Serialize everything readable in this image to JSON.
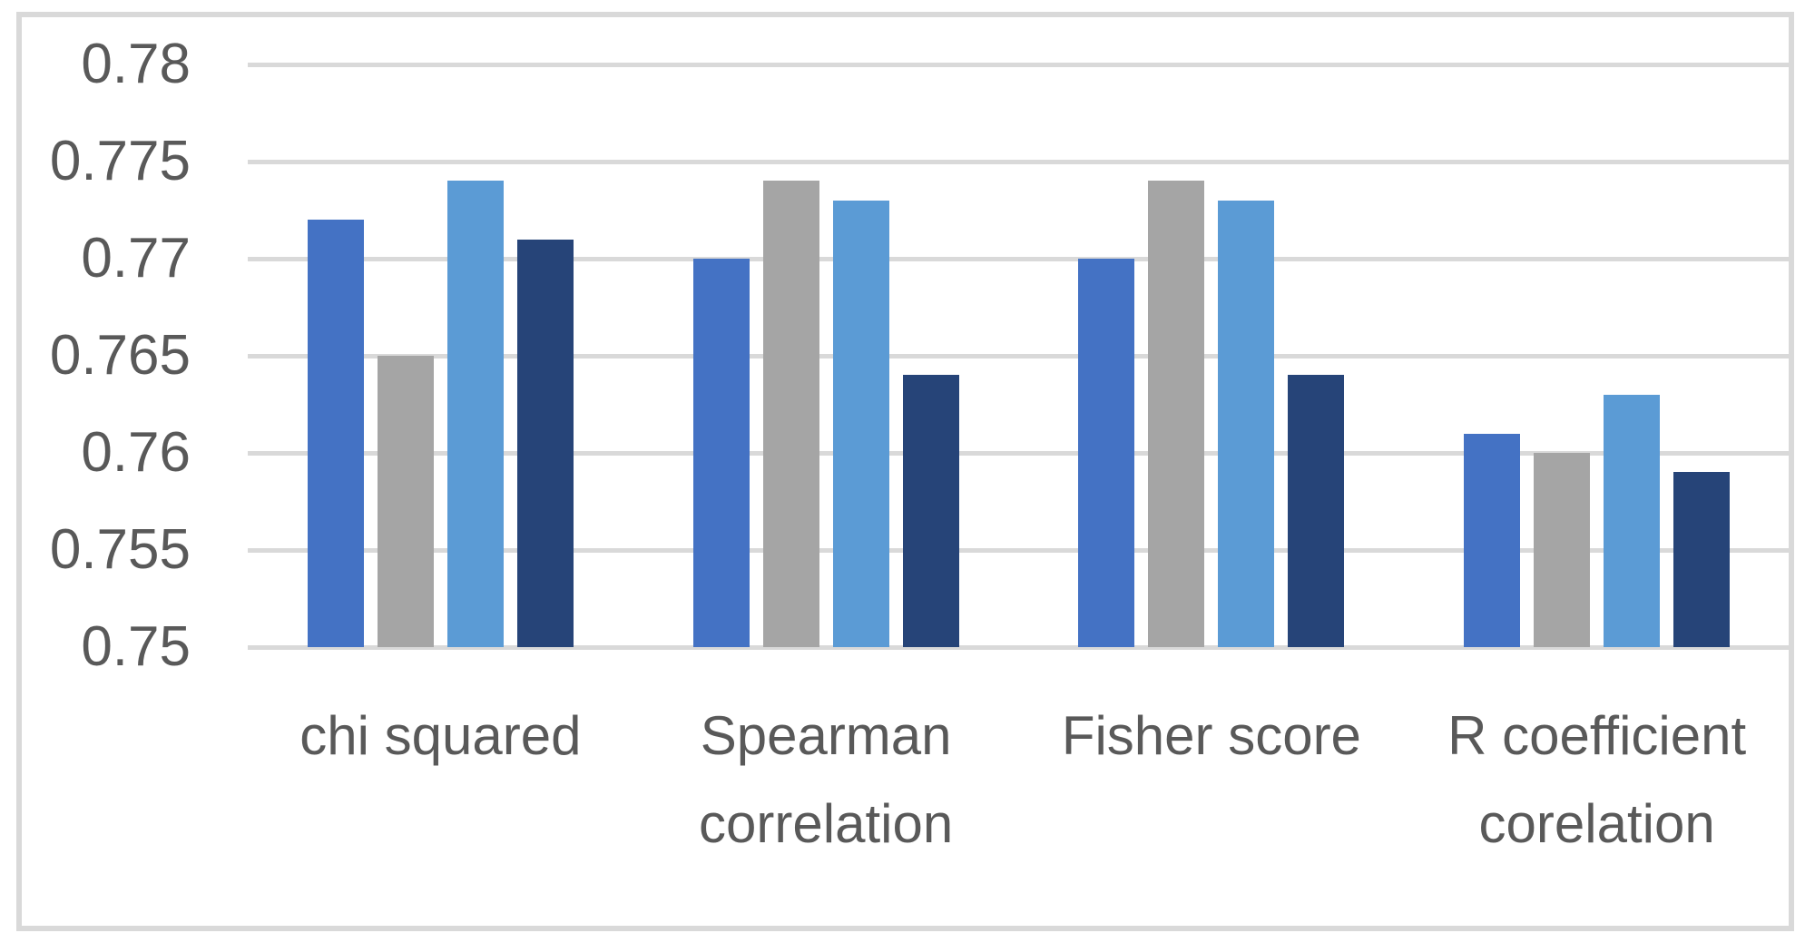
{
  "chart_data": {
    "type": "bar",
    "title": "",
    "xlabel": "",
    "ylabel": "",
    "categories": [
      "chi squared",
      "Spearman correlation",
      "Fisher score",
      "R coefficient corelation"
    ],
    "series": [
      {
        "color": "#4472C4",
        "values": [
          0.772,
          0.77,
          0.77,
          0.761
        ]
      },
      {
        "color": "#A5A5A5",
        "values": [
          0.765,
          0.774,
          0.774,
          0.76
        ]
      },
      {
        "color": "#5B9BD5",
        "values": [
          0.774,
          0.773,
          0.773,
          0.763
        ]
      },
      {
        "color": "#264478",
        "values": [
          0.771,
          0.764,
          0.764,
          0.759
        ]
      }
    ],
    "ylim": [
      0.75,
      0.78
    ],
    "ytick_step": 0.005,
    "ytick_labels": [
      "0.78",
      "0.775",
      "0.77",
      "0.765",
      "0.76",
      "0.755",
      "0.75"
    ],
    "grid": true,
    "legend": false
  },
  "colors": {
    "background": "#FFFFFF",
    "gridline": "#D9D9D9",
    "chart_border": "#D9D9D9",
    "axis_text": "#595959"
  }
}
